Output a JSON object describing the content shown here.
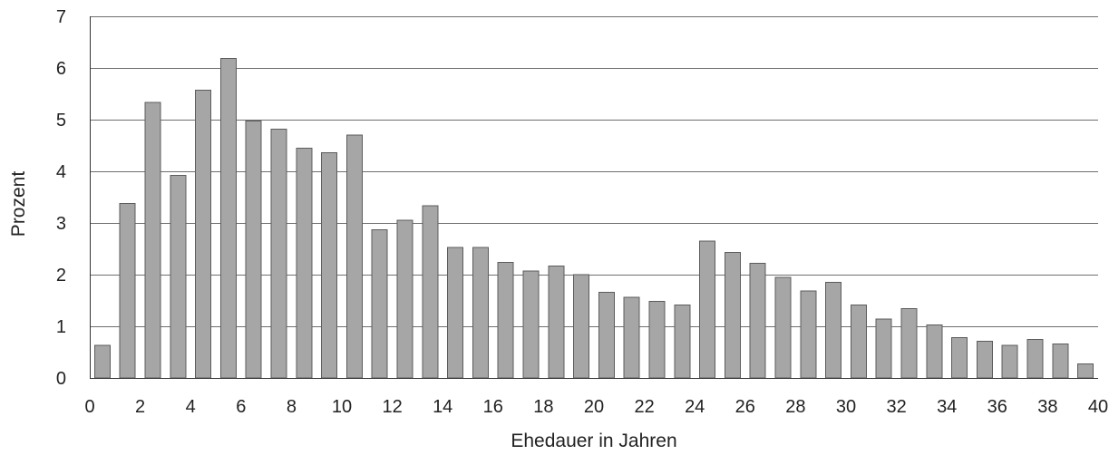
{
  "chart_data": {
    "type": "bar",
    "title": "",
    "xlabel": "Ehedauer in Jahren",
    "ylabel": "Prozent",
    "x": [
      1,
      2,
      3,
      4,
      5,
      6,
      7,
      8,
      9,
      10,
      11,
      12,
      13,
      14,
      15,
      16,
      17,
      18,
      19,
      20,
      21,
      22,
      23,
      24,
      25,
      26,
      27,
      28,
      29,
      30,
      31,
      32,
      33,
      34,
      35,
      36,
      37,
      38,
      39,
      40
    ],
    "values": [
      0.63,
      3.38,
      5.33,
      3.92,
      5.57,
      6.18,
      4.97,
      4.82,
      4.45,
      4.36,
      4.7,
      2.87,
      3.05,
      3.33,
      2.53,
      2.53,
      2.24,
      2.07,
      2.17,
      2.0,
      1.66,
      1.56,
      1.48,
      1.41,
      2.65,
      2.43,
      2.22,
      1.95,
      1.68,
      1.85,
      1.41,
      1.14,
      1.34,
      1.03,
      0.78,
      0.71,
      0.63,
      0.75,
      0.66,
      0.27
    ],
    "xlim": [
      0,
      40
    ],
    "ylim": [
      0,
      7
    ],
    "x_ticks": [
      "0",
      "2",
      "4",
      "6",
      "8",
      "10",
      "12",
      "14",
      "16",
      "18",
      "20",
      "22",
      "24",
      "26",
      "28",
      "30",
      "32",
      "34",
      "36",
      "38",
      "40"
    ],
    "y_ticks": [
      "0",
      "1",
      "2",
      "3",
      "4",
      "5",
      "6",
      "7"
    ],
    "grid": true,
    "legend": "none",
    "bar_color": "#a6a6a6",
    "bar_edge_color": "#5c5c5c",
    "grid_color": "#6f6f6f"
  }
}
